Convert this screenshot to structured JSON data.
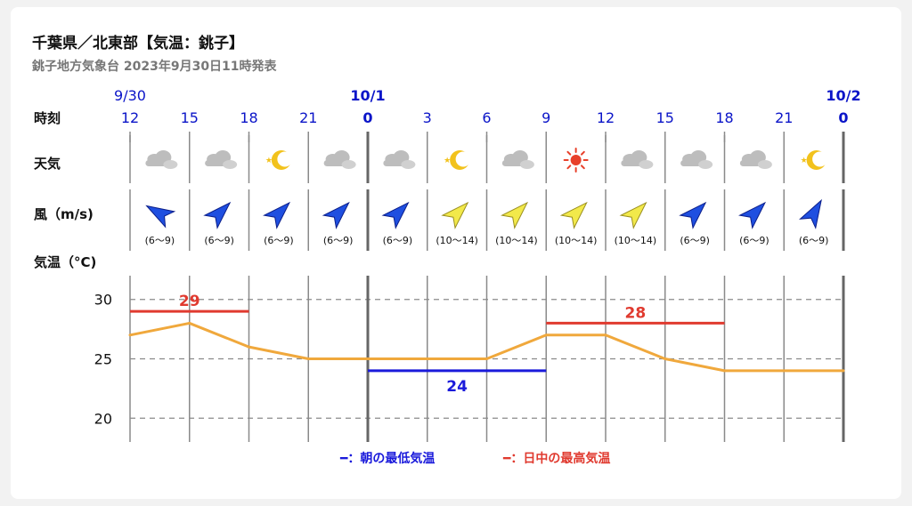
{
  "header": {
    "title": "千葉県／北東部【気温：銚子】",
    "subtitle": "銚子地方気象台 2023年9月30日11時発表"
  },
  "row_labels": {
    "time": "時刻",
    "weather": "天気",
    "wind": "風（m/s)",
    "temperature": "気温（°C)"
  },
  "colors": {
    "accent_blue": "#0a14c8",
    "temperature_line": "#f0a83c",
    "max_line": "#e03a2f",
    "min_line": "#1a1adb",
    "wind_strong_arrow": "#1f4fe0",
    "wind_weak_arrow": "#f2e94a",
    "sun": "#e8402a",
    "moon": "#f2c21c",
    "cloud": "#bdbdbd"
  },
  "timeline": [
    {
      "hour": "12",
      "date": "9/30",
      "day_boundary": false,
      "weather": "cloud-icon",
      "wind_range": "(6〜9)",
      "wind_strength": "strong"
    },
    {
      "hour": "15",
      "date": "",
      "day_boundary": false,
      "weather": "cloud-icon",
      "wind_range": "(6〜9)",
      "wind_strength": "strong"
    },
    {
      "hour": "18",
      "date": "",
      "day_boundary": false,
      "weather": "moon-icon",
      "wind_range": "(6〜9)",
      "wind_strength": "strong"
    },
    {
      "hour": "21",
      "date": "",
      "day_boundary": false,
      "weather": "cloud-icon",
      "wind_range": "(6〜9)",
      "wind_strength": "strong"
    },
    {
      "hour": "0",
      "date": "10/1",
      "day_boundary": true,
      "weather": "cloud-icon",
      "wind_range": "(6〜9)",
      "wind_strength": "strong"
    },
    {
      "hour": "3",
      "date": "",
      "day_boundary": false,
      "weather": "moon-icon",
      "wind_range": "(10〜14)",
      "wind_strength": "weak"
    },
    {
      "hour": "6",
      "date": "",
      "day_boundary": false,
      "weather": "cloud-icon",
      "wind_range": "(10〜14)",
      "wind_strength": "weak"
    },
    {
      "hour": "9",
      "date": "",
      "day_boundary": false,
      "weather": "sun-icon",
      "wind_range": "(10〜14)",
      "wind_strength": "weak"
    },
    {
      "hour": "12",
      "date": "",
      "day_boundary": false,
      "weather": "cloud-icon",
      "wind_range": "(10〜14)",
      "wind_strength": "weak"
    },
    {
      "hour": "15",
      "date": "",
      "day_boundary": false,
      "weather": "cloud-icon",
      "wind_range": "(6〜9)",
      "wind_strength": "strong"
    },
    {
      "hour": "18",
      "date": "",
      "day_boundary": false,
      "weather": "cloud-icon",
      "wind_range": "(6〜9)",
      "wind_strength": "strong"
    },
    {
      "hour": "21",
      "date": "",
      "day_boundary": false,
      "weather": "moon-icon",
      "wind_range": "(6〜9)",
      "wind_strength": "strong"
    },
    {
      "hour": "0",
      "date": "10/2",
      "day_boundary": true,
      "weather": "",
      "wind_range": "",
      "wind_strength": ""
    }
  ],
  "chart_data": {
    "type": "line",
    "title": "千葉県／北東部【気温：銚子】",
    "x": [
      "12",
      "15",
      "18",
      "21",
      "0",
      "3",
      "6",
      "9",
      "12",
      "15",
      "18",
      "21",
      "0"
    ],
    "ylabel": "気温（°C)",
    "ylim": [
      18,
      32
    ],
    "yticks": [
      20,
      25,
      30
    ],
    "grid": true,
    "series": [
      {
        "values": [
          27,
          28,
          26,
          25,
          25,
          25,
          25,
          27,
          27,
          25,
          24,
          24,
          24
        ]
      }
    ],
    "max_min": [
      {
        "kind": "max",
        "value": 29,
        "label": "29",
        "x_start": "12",
        "x_end": "18"
      },
      {
        "kind": "min",
        "value": 24,
        "label": "24",
        "x_start": "0",
        "x_end": "9"
      },
      {
        "kind": "max",
        "value": 28,
        "label": "28",
        "x_start": "9",
        "x_end": "18"
      }
    ],
    "legend": [
      {
        "key": "min",
        "label": "━：朝の最低気温"
      },
      {
        "key": "max",
        "label": "━：日中の最高気温"
      }
    ],
    "legend_position": "bottom"
  }
}
